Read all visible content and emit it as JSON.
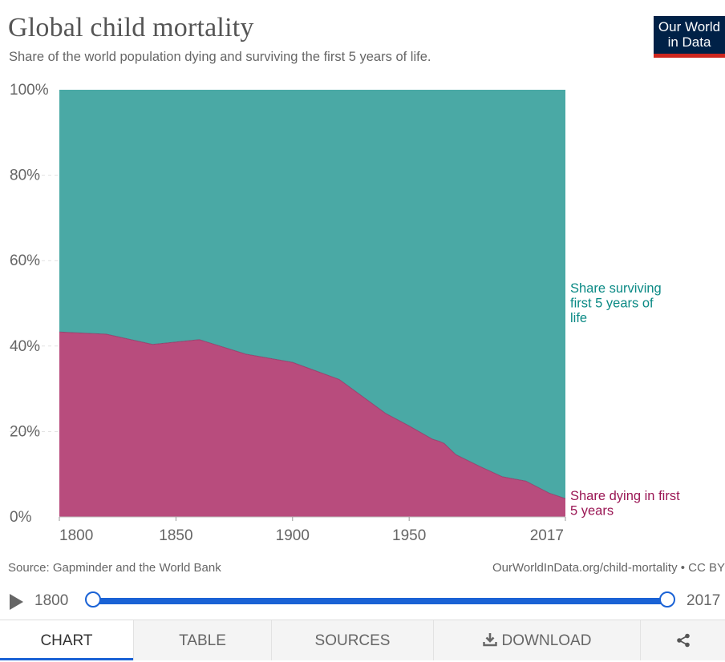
{
  "header": {
    "title": "Global child mortality",
    "subtitle": "Share of the world population dying and surviving the first 5 years of life.",
    "logo_line1": "Our World",
    "logo_line2": "in Data"
  },
  "footer": {
    "source": "Source: Gapminder and the World Bank",
    "url": "OurWorldInData.org/child-mortality • CC BY"
  },
  "timeline": {
    "start_label": "1800",
    "end_label": "2017",
    "play_icon": "play-icon"
  },
  "tabs": [
    {
      "label": "CHART",
      "active": true
    },
    {
      "label": "TABLE",
      "active": false
    },
    {
      "label": "SOURCES",
      "active": false
    },
    {
      "label": "DOWNLOAD",
      "active": false,
      "icon": "download-icon"
    },
    {
      "label": "",
      "active": false,
      "icon": "share-icon"
    }
  ],
  "chart_data": {
    "type": "area",
    "stacked": true,
    "x": [
      1800,
      1820,
      1840,
      1860,
      1880,
      1900,
      1920,
      1940,
      1950,
      1960,
      1963,
      1965,
      1970,
      1980,
      1990,
      2000,
      2010,
      2017
    ],
    "series": [
      {
        "name": "Share dying in first 5 years",
        "color": "#b84c7d",
        "label_color": "#9a1654",
        "values": [
          43.3,
          42.8,
          40.4,
          41.5,
          38.1,
          36.2,
          32.2,
          24.2,
          21.3,
          18.2,
          17.7,
          17.2,
          14.6,
          11.9,
          9.4,
          8.4,
          5.6,
          4.3
        ]
      },
      {
        "name": "Share surviving first 5 years of life",
        "color": "#4aa9a5",
        "label_color": "#0b8a85",
        "values": [
          56.7,
          57.2,
          59.6,
          58.5,
          61.9,
          63.8,
          67.8,
          75.8,
          78.7,
          81.8,
          82.3,
          82.8,
          85.4,
          88.1,
          90.6,
          91.6,
          94.4,
          95.7
        ]
      }
    ],
    "xlim": [
      1800,
      2017
    ],
    "ylim": [
      0,
      100
    ],
    "y_ticks": [
      "0%",
      "20%",
      "40%",
      "60%",
      "80%",
      "100%"
    ],
    "x_ticks": [
      "1800",
      "1850",
      "1900",
      "1950",
      "2017"
    ],
    "grid": "horizontal dashed",
    "legend": "inline labels at right"
  }
}
